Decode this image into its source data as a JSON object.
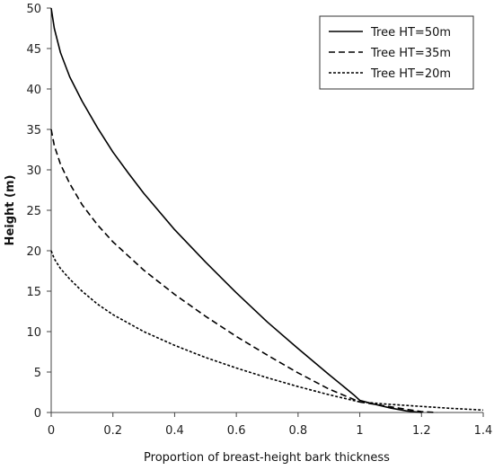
{
  "chart_data": {
    "type": "line",
    "title": "",
    "xlabel": "Proportion of breast-height bark thickness",
    "ylabel": "Height (m)",
    "xlim": [
      0,
      1.4
    ],
    "ylim": [
      0,
      50
    ],
    "x_ticks": [
      "0",
      "0.2",
      "0.4",
      "0.6",
      "0.8",
      "1",
      "1.2",
      "1.4"
    ],
    "y_ticks": [
      "0",
      "5",
      "10",
      "15",
      "20",
      "25",
      "30",
      "35",
      "40",
      "45",
      "50"
    ],
    "grid": false,
    "legend_position": "top-right",
    "series": [
      {
        "name": "Tree HT=50m",
        "dash": "solid",
        "points": [
          [
            0,
            50
          ],
          [
            0.01,
            47.5
          ],
          [
            0.03,
            44.5
          ],
          [
            0.06,
            41.5
          ],
          [
            0.1,
            38.5
          ],
          [
            0.15,
            35.2
          ],
          [
            0.2,
            32.2
          ],
          [
            0.25,
            29.6
          ],
          [
            0.3,
            27.1
          ],
          [
            0.4,
            22.6
          ],
          [
            0.5,
            18.6
          ],
          [
            0.6,
            14.8
          ],
          [
            0.7,
            11.2
          ],
          [
            0.8,
            7.9
          ],
          [
            0.9,
            4.7
          ],
          [
            0.98,
            2.2
          ],
          [
            1.0,
            1.5
          ],
          [
            1.05,
            1.0
          ],
          [
            1.1,
            0.55
          ],
          [
            1.15,
            0.2
          ],
          [
            1.2,
            0
          ]
        ]
      },
      {
        "name": "Tree HT=35m",
        "dash": "dashed",
        "points": [
          [
            0,
            35
          ],
          [
            0.01,
            33
          ],
          [
            0.03,
            30.7
          ],
          [
            0.06,
            28.3
          ],
          [
            0.1,
            25.7
          ],
          [
            0.15,
            23.2
          ],
          [
            0.2,
            21.1
          ],
          [
            0.3,
            17.6
          ],
          [
            0.4,
            14.6
          ],
          [
            0.5,
            11.9
          ],
          [
            0.6,
            9.4
          ],
          [
            0.7,
            7.1
          ],
          [
            0.8,
            4.9
          ],
          [
            0.9,
            2.9
          ],
          [
            1.0,
            1.3
          ],
          [
            1.05,
            1.0
          ],
          [
            1.1,
            0.7
          ],
          [
            1.15,
            0.4
          ],
          [
            1.2,
            0.1
          ],
          [
            1.25,
            0
          ]
        ]
      },
      {
        "name": "Tree HT=20m",
        "dash": "dotted",
        "points": [
          [
            0,
            20
          ],
          [
            0.01,
            19
          ],
          [
            0.03,
            17.8
          ],
          [
            0.06,
            16.5
          ],
          [
            0.1,
            15.0
          ],
          [
            0.15,
            13.4
          ],
          [
            0.2,
            12.1
          ],
          [
            0.3,
            10.0
          ],
          [
            0.4,
            8.3
          ],
          [
            0.5,
            6.8
          ],
          [
            0.6,
            5.5
          ],
          [
            0.7,
            4.3
          ],
          [
            0.8,
            3.2
          ],
          [
            0.9,
            2.2
          ],
          [
            1.0,
            1.3
          ],
          [
            1.1,
            1.0
          ],
          [
            1.2,
            0.75
          ],
          [
            1.3,
            0.5
          ],
          [
            1.4,
            0.3
          ]
        ]
      }
    ]
  }
}
